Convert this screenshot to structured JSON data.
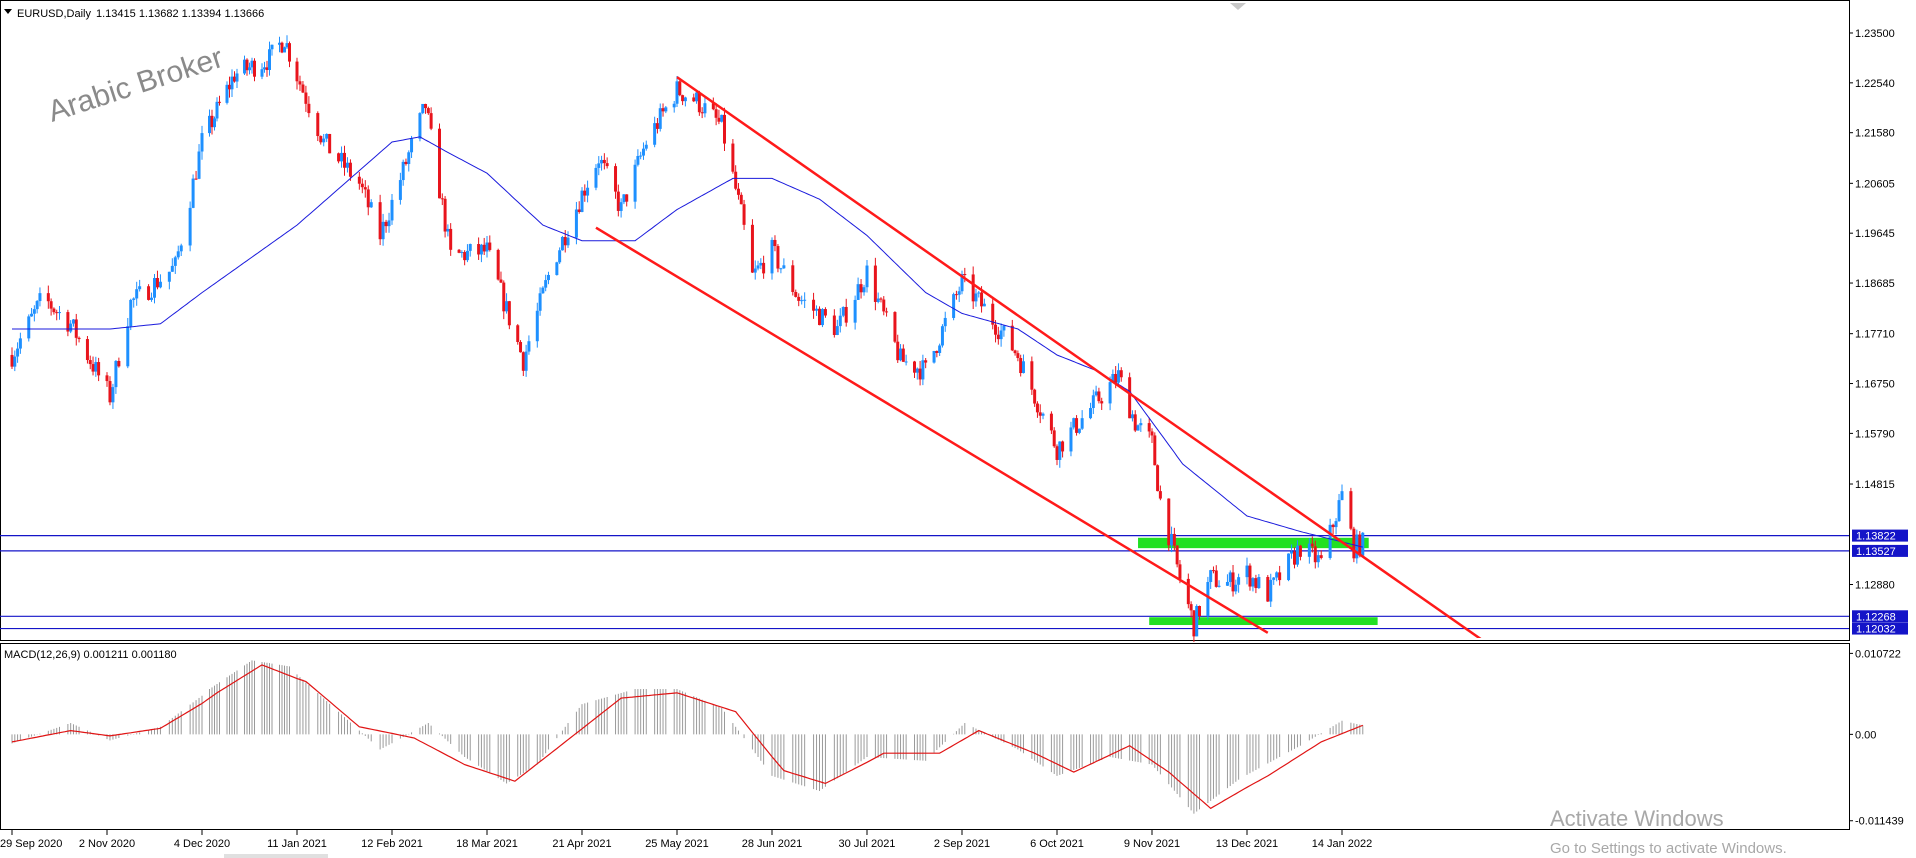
{
  "header": {
    "symbol_label": "EURUSD,Daily",
    "ohlc": "1.13415 1.13682 1.13394 1.13666"
  },
  "watermark": "Arabic Broker",
  "activation": {
    "title": "Activate Windows",
    "subtitle": "Go to Settings to activate Windows."
  },
  "colors": {
    "bull": "#1e90ff",
    "bear": "#e8141c",
    "ma": "#1a1adc",
    "channel": "#ff1a1a",
    "zone": "#22e022",
    "level": "#1414c8",
    "macd_hist": "#9a9a9a",
    "macd_signal": "#e01414"
  },
  "chart_data": [
    {
      "type": "line",
      "subtype": "candlestick",
      "title": "EURUSD,Daily",
      "x_dates": [
        "29 Sep 2020",
        "2 Nov 2020",
        "4 Dec 2020",
        "11 Jan 2021",
        "12 Feb 2021",
        "18 Mar 2021",
        "21 Apr 2021",
        "25 May 2021",
        "28 Jun 2021",
        "30 Jul 2021",
        "2 Sep 2021",
        "6 Oct 2021",
        "9 Nov 2021",
        "13 Dec 2021",
        "14 Jan 2022"
      ],
      "y_ticks": [
        "1.23500",
        "1.22540",
        "1.21580",
        "1.20605",
        "1.19645",
        "1.18685",
        "1.17710",
        "1.16750",
        "1.15790",
        "1.14815",
        "1.12880"
      ],
      "ylim": [
        1.1185,
        1.2375
      ],
      "close_path": [
        {
          "date": "2020-09-29",
          "close": 1.173
        },
        {
          "date": "2020-10-10",
          "close": 1.184
        },
        {
          "date": "2020-10-20",
          "close": 1.179
        },
        {
          "date": "2020-11-03",
          "close": 1.165
        },
        {
          "date": "2020-11-10",
          "close": 1.183
        },
        {
          "date": "2020-11-25",
          "close": 1.19
        },
        {
          "date": "2020-12-04",
          "close": 1.214
        },
        {
          "date": "2020-12-17",
          "close": 1.227
        },
        {
          "date": "2020-12-31",
          "close": 1.23
        },
        {
          "date": "2021-01-06",
          "close": 1.234
        },
        {
          "date": "2021-01-20",
          "close": 1.214
        },
        {
          "date": "2021-02-01",
          "close": 1.206
        },
        {
          "date": "2021-02-08",
          "close": 1.196
        },
        {
          "date": "2021-02-24",
          "close": 1.221
        },
        {
          "date": "2021-03-05",
          "close": 1.192
        },
        {
          "date": "2021-03-18",
          "close": 1.193
        },
        {
          "date": "2021-03-31",
          "close": 1.172
        },
        {
          "date": "2021-04-10",
          "close": 1.19
        },
        {
          "date": "2021-04-21",
          "close": 1.204
        },
        {
          "date": "2021-04-27",
          "close": 1.211
        },
        {
          "date": "2021-05-05",
          "close": 1.201
        },
        {
          "date": "2021-05-14",
          "close": 1.214
        },
        {
          "date": "2021-05-25",
          "close": 1.224
        },
        {
          "date": "2021-06-01",
          "close": 1.222
        },
        {
          "date": "2021-06-10",
          "close": 1.217
        },
        {
          "date": "2021-06-17",
          "close": 1.2
        },
        {
          "date": "2021-06-21",
          "close": 1.188
        },
        {
          "date": "2021-06-28",
          "close": 1.193
        },
        {
          "date": "2021-07-07",
          "close": 1.184
        },
        {
          "date": "2021-07-20",
          "close": 1.178
        },
        {
          "date": "2021-07-30",
          "close": 1.189
        },
        {
          "date": "2021-08-11",
          "close": 1.172
        },
        {
          "date": "2021-08-20",
          "close": 1.17
        },
        {
          "date": "2021-09-02",
          "close": 1.187
        },
        {
          "date": "2021-09-10",
          "close": 1.182
        },
        {
          "date": "2021-09-22",
          "close": 1.173
        },
        {
          "date": "2021-10-06",
          "close": 1.155
        },
        {
          "date": "2021-10-20",
          "close": 1.164
        },
        {
          "date": "2021-10-28",
          "close": 1.169
        },
        {
          "date": "2021-11-03",
          "close": 1.16
        },
        {
          "date": "2021-11-09",
          "close": 1.156
        },
        {
          "date": "2021-11-12",
          "close": 1.145
        },
        {
          "date": "2021-11-19",
          "close": 1.13
        },
        {
          "date": "2021-11-24",
          "close": 1.121
        },
        {
          "date": "2021-11-30",
          "close": 1.13
        },
        {
          "date": "2021-12-06",
          "close": 1.129
        },
        {
          "date": "2021-12-13",
          "close": 1.131
        },
        {
          "date": "2021-12-20",
          "close": 1.127
        },
        {
          "date": "2021-12-31",
          "close": 1.136
        },
        {
          "date": "2022-01-07",
          "close": 1.133
        },
        {
          "date": "2022-01-14",
          "close": 1.146
        },
        {
          "date": "2022-01-18",
          "close": 1.136
        },
        {
          "date": "2022-01-21",
          "close": 1.1367
        }
      ],
      "series": [
        {
          "name": "",
          "kind": "moving-average",
          "points": [
            {
              "date": "2020-09-29",
              "value": 1.178
            },
            {
              "date": "2020-11-03",
              "value": 1.178
            },
            {
              "date": "2020-11-20",
              "value": 1.179
            },
            {
              "date": "2020-12-04",
              "value": 1.185
            },
            {
              "date": "2021-01-11",
              "value": 1.198
            },
            {
              "date": "2021-02-04",
              "value": 1.21
            },
            {
              "date": "2021-02-12",
              "value": 1.214
            },
            {
              "date": "2021-02-22",
              "value": 1.215
            },
            {
              "date": "2021-03-04",
              "value": 1.212
            },
            {
              "date": "2021-03-18",
              "value": 1.208
            },
            {
              "date": "2021-04-07",
              "value": 1.198
            },
            {
              "date": "2021-04-21",
              "value": 1.195
            },
            {
              "date": "2021-05-10",
              "value": 1.195
            },
            {
              "date": "2021-05-25",
              "value": 1.201
            },
            {
              "date": "2021-06-14",
              "value": 1.207
            },
            {
              "date": "2021-06-28",
              "value": 1.207
            },
            {
              "date": "2021-07-14",
              "value": 1.203
            },
            {
              "date": "2021-07-30",
              "value": 1.196
            },
            {
              "date": "2021-08-20",
              "value": 1.185
            },
            {
              "date": "2021-09-02",
              "value": 1.181
            },
            {
              "date": "2021-09-22",
              "value": 1.178
            },
            {
              "date": "2021-10-06",
              "value": 1.173
            },
            {
              "date": "2021-10-20",
              "value": 1.17
            },
            {
              "date": "2021-11-01",
              "value": 1.166
            },
            {
              "date": "2021-11-20",
              "value": 1.152
            },
            {
              "date": "2021-12-13",
              "value": 1.142
            },
            {
              "date": "2021-12-31",
              "value": 1.139
            },
            {
              "date": "2022-01-14",
              "value": 1.137
            },
            {
              "date": "2022-01-21",
              "value": 1.136
            }
          ]
        }
      ],
      "trendlines": [
        {
          "name": "",
          "from": {
            "date": "2021-05-25",
            "value": 1.2265
          },
          "to": {
            "date": "2022-03-15",
            "value": 1.113
          }
        },
        {
          "name": "",
          "from": {
            "date": "2021-04-26",
            "value": 1.1975
          },
          "to": {
            "date": "2021-12-20",
            "value": 1.1195
          }
        }
      ],
      "zones": [
        {
          "name": "",
          "from": "2021-11-04",
          "to": "2022-01-23",
          "low": 1.1358,
          "high": 1.1378
        },
        {
          "name": "",
          "from": "2021-11-08",
          "to": "2022-01-26",
          "low": 1.121,
          "high": 1.1225
        }
      ],
      "horizontal_levels": [
        {
          "label": "1.13822",
          "value": 1.13822
        },
        {
          "label": "1.13527",
          "value": 1.13527
        },
        {
          "label": "1.12268",
          "value": 1.12268
        },
        {
          "label": "1.12032",
          "value": 1.12032
        }
      ],
      "xlabel": "",
      "ylabel": ""
    },
    {
      "type": "bar",
      "title": "MACD(12,26,9) 0.001211 0.001180",
      "y_ticks": [
        "0.010722",
        "0.00",
        "-0.011439"
      ],
      "ylim": [
        -0.0124,
        0.0117
      ],
      "histogram_path": [
        {
          "date": "2020-09-29",
          "value": -0.0012
        },
        {
          "date": "2020-10-20",
          "value": 0.0015
        },
        {
          "date": "2020-11-03",
          "value": -0.0008
        },
        {
          "date": "2020-11-20",
          "value": 0.001
        },
        {
          "date": "2020-12-07",
          "value": 0.006
        },
        {
          "date": "2020-12-24",
          "value": 0.0098
        },
        {
          "date": "2021-01-08",
          "value": 0.009
        },
        {
          "date": "2021-01-25",
          "value": 0.003
        },
        {
          "date": "2021-02-08",
          "value": -0.002
        },
        {
          "date": "2021-02-25",
          "value": 0.0015
        },
        {
          "date": "2021-03-10",
          "value": -0.003
        },
        {
          "date": "2021-03-25",
          "value": -0.0065
        },
        {
          "date": "2021-04-05",
          "value": -0.004
        },
        {
          "date": "2021-04-21",
          "value": 0.004
        },
        {
          "date": "2021-05-10",
          "value": 0.006
        },
        {
          "date": "2021-05-25",
          "value": 0.006
        },
        {
          "date": "2021-06-10",
          "value": 0.0035
        },
        {
          "date": "2021-06-28",
          "value": -0.0055
        },
        {
          "date": "2021-07-14",
          "value": -0.0075
        },
        {
          "date": "2021-07-30",
          "value": -0.003
        },
        {
          "date": "2021-08-20",
          "value": -0.0035
        },
        {
          "date": "2021-09-03",
          "value": 0.0015
        },
        {
          "date": "2021-09-22",
          "value": -0.002
        },
        {
          "date": "2021-10-06",
          "value": -0.0055
        },
        {
          "date": "2021-10-25",
          "value": -0.003
        },
        {
          "date": "2021-11-09",
          "value": -0.004
        },
        {
          "date": "2021-11-24",
          "value": -0.0105
        },
        {
          "date": "2021-12-10",
          "value": -0.006
        },
        {
          "date": "2021-12-31",
          "value": -0.0015
        },
        {
          "date": "2022-01-14",
          "value": 0.0018
        },
        {
          "date": "2022-01-21",
          "value": 0.0012
        }
      ],
      "series": [
        {
          "name": "",
          "kind": "signal",
          "points": [
            {
              "date": "2020-09-29",
              "value": -0.001
            },
            {
              "date": "2020-10-20",
              "value": 0.0005
            },
            {
              "date": "2020-11-03",
              "value": -0.0002
            },
            {
              "date": "2020-11-20",
              "value": 0.0008
            },
            {
              "date": "2020-12-10",
              "value": 0.0055
            },
            {
              "date": "2020-12-28",
              "value": 0.0092
            },
            {
              "date": "2021-01-14",
              "value": 0.007
            },
            {
              "date": "2021-02-01",
              "value": 0.001
            },
            {
              "date": "2021-02-20",
              "value": -0.0005
            },
            {
              "date": "2021-03-10",
              "value": -0.004
            },
            {
              "date": "2021-03-28",
              "value": -0.0062
            },
            {
              "date": "2021-04-15",
              "value": -0.001
            },
            {
              "date": "2021-05-05",
              "value": 0.0048
            },
            {
              "date": "2021-05-25",
              "value": 0.0055
            },
            {
              "date": "2021-06-15",
              "value": 0.003
            },
            {
              "date": "2021-07-02",
              "value": -0.0048
            },
            {
              "date": "2021-07-16",
              "value": -0.0065
            },
            {
              "date": "2021-08-05",
              "value": -0.0025
            },
            {
              "date": "2021-08-25",
              "value": -0.0025
            },
            {
              "date": "2021-09-08",
              "value": 0.0005
            },
            {
              "date": "2021-09-28",
              "value": -0.0025
            },
            {
              "date": "2021-10-12",
              "value": -0.005
            },
            {
              "date": "2021-11-01",
              "value": -0.0015
            },
            {
              "date": "2021-11-15",
              "value": -0.005
            },
            {
              "date": "2021-11-30",
              "value": -0.0098
            },
            {
              "date": "2021-12-20",
              "value": -0.0055
            },
            {
              "date": "2022-01-07",
              "value": -0.001
            },
            {
              "date": "2022-01-21",
              "value": 0.0012
            }
          ]
        }
      ],
      "xlabel": "",
      "ylabel": ""
    }
  ]
}
